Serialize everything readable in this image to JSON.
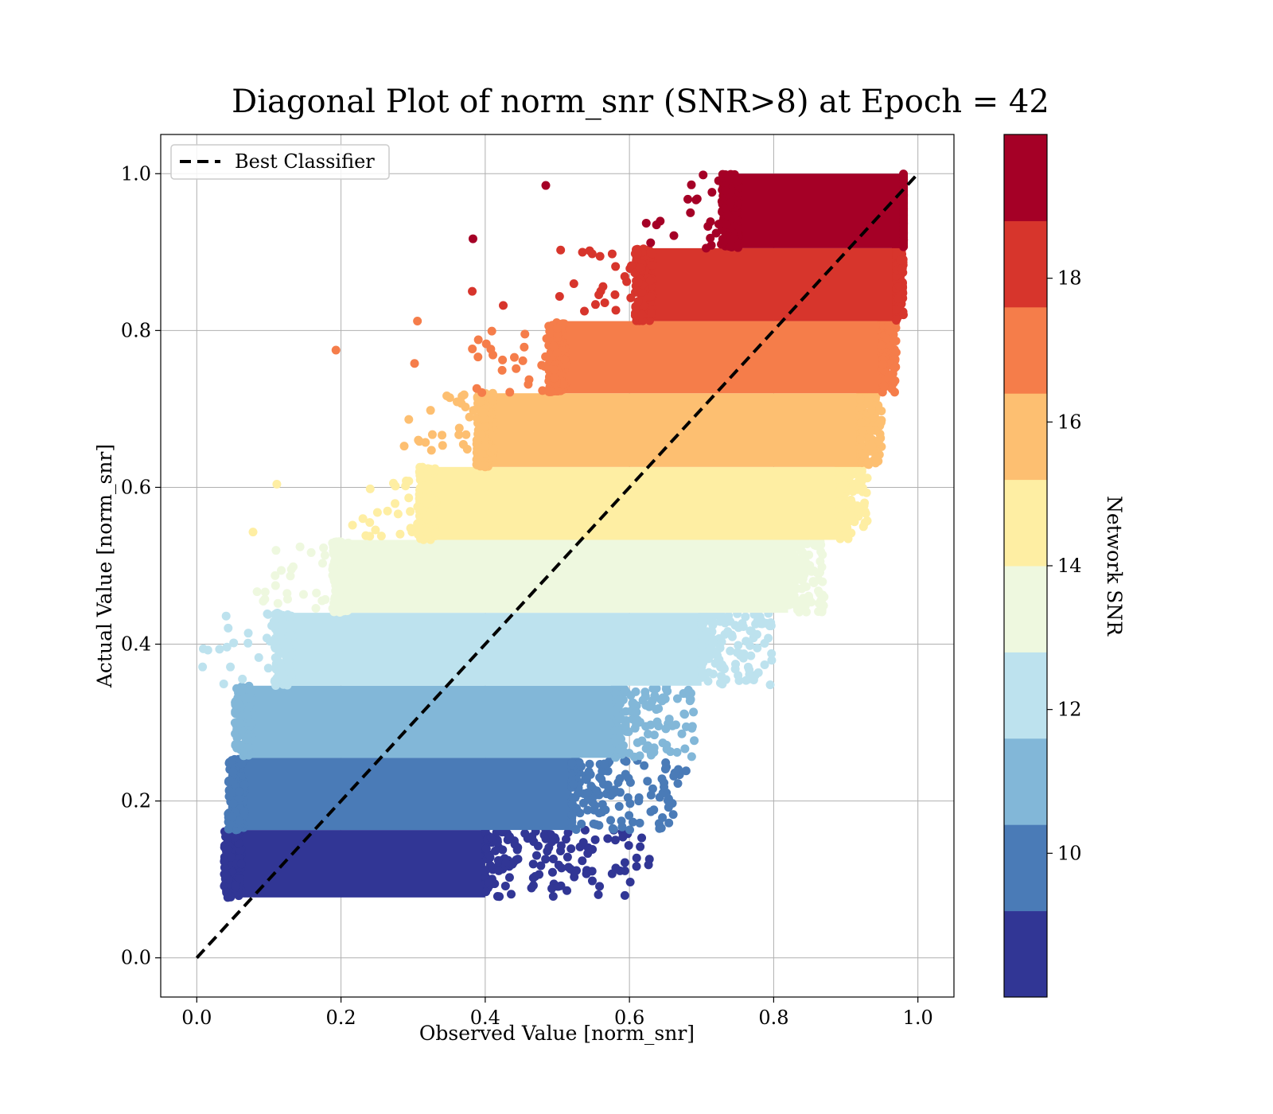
{
  "chart_data": {
    "type": "scatter",
    "title": "Diagonal Plot of norm_snr (SNR>8) at Epoch = 42",
    "xlabel": "Observed Value [norm_snr]",
    "ylabel": "Actual Value [norm_snr]",
    "xlim": [
      -0.05,
      1.05
    ],
    "ylim": [
      -0.05,
      1.05
    ],
    "xticks": [
      "0.0",
      "0.2",
      "0.4",
      "0.6",
      "0.8",
      "1.0"
    ],
    "yticks": [
      "0.0",
      "0.2",
      "0.4",
      "0.6",
      "0.8",
      "1.0"
    ],
    "grid": true,
    "legend": {
      "position": "upper-left",
      "entries": [
        "Best Classifier"
      ]
    },
    "reference_line": {
      "name": "Best Classifier",
      "x": [
        0.0,
        1.0
      ],
      "y": [
        0.0,
        1.0
      ],
      "style": "dashed",
      "color": "#000000"
    },
    "colorbar": {
      "label": "Network SNR",
      "range": [
        8,
        20
      ],
      "ticks": [
        "10",
        "12",
        "14",
        "16",
        "18"
      ],
      "bands": [
        {
          "min": 8,
          "max": 9.2,
          "color": "#313695"
        },
        {
          "min": 9.2,
          "max": 10.4,
          "color": "#4a7bb7"
        },
        {
          "min": 10.4,
          "max": 11.6,
          "color": "#82b7d8"
        },
        {
          "min": 11.6,
          "max": 12.8,
          "color": "#bde2ee"
        },
        {
          "min": 12.8,
          "max": 14.0,
          "color": "#eef8df"
        },
        {
          "min": 14.0,
          "max": 15.2,
          "color": "#feeea3"
        },
        {
          "min": 15.2,
          "max": 16.4,
          "color": "#fdbf71"
        },
        {
          "min": 16.4,
          "max": 17.6,
          "color": "#f57d4a"
        },
        {
          "min": 17.6,
          "max": 18.8,
          "color": "#d7352c"
        },
        {
          "min": 18.8,
          "max": 20.0,
          "color": "#a50026"
        }
      ]
    },
    "point_bands": [
      {
        "snr_band": "8.0-9.2",
        "y_range": [
          0.077,
          0.163
        ],
        "x_core": [
          0.05,
          0.4
        ],
        "x_sparse_max": 0.63
      },
      {
        "snr_band": "9.2-10.4",
        "y_range": [
          0.163,
          0.255
        ],
        "x_core": [
          0.055,
          0.52
        ],
        "x_sparse_max": 0.68
      },
      {
        "snr_band": "10.4-11.6",
        "y_range": [
          0.255,
          0.347
        ],
        "x_core": [
          0.065,
          0.58
        ],
        "x_sparse_max": 0.69
      },
      {
        "snr_band": "11.6-12.8",
        "y_range": [
          0.347,
          0.44
        ],
        "x_core": [
          0.12,
          0.7
        ],
        "x_sparse_max": 0.8
      },
      {
        "snr_band": "12.8-14.0",
        "y_range": [
          0.44,
          0.533
        ],
        "x_core": [
          0.2,
          0.82
        ],
        "x_sparse_max": 0.87
      },
      {
        "snr_band": "14.0-15.2",
        "y_range": [
          0.533,
          0.626
        ],
        "x_core": [
          0.32,
          0.89
        ],
        "x_sparse_max": 0.93
      },
      {
        "snr_band": "15.2-16.4",
        "y_range": [
          0.626,
          0.72
        ],
        "x_core": [
          0.4,
          0.92
        ],
        "x_sparse_max": 0.95
      },
      {
        "snr_band": "16.4-17.6",
        "y_range": [
          0.72,
          0.812
        ],
        "x_core": [
          0.5,
          0.95
        ],
        "x_sparse_max": 0.97
      },
      {
        "snr_band": "17.6-18.8",
        "y_range": [
          0.812,
          0.905
        ],
        "x_core": [
          0.62,
          0.97
        ],
        "x_sparse_max": 0.98
      },
      {
        "snr_band": "18.8-20.0",
        "y_range": [
          0.905,
          1.0
        ],
        "x_core": [
          0.74,
          0.98
        ],
        "x_sparse_max": 0.98
      }
    ],
    "outliers": [
      {
        "x": 0.484,
        "y": 0.985
      },
      {
        "x": 0.383,
        "y": 0.917
      },
      {
        "x": 0.382,
        "y": 0.85
      },
      {
        "x": 0.425,
        "y": 0.832
      },
      {
        "x": 0.306,
        "y": 0.812
      },
      {
        "x": 0.193,
        "y": 0.775
      },
      {
        "x": 0.302,
        "y": 0.758
      },
      {
        "x": 0.078,
        "y": 0.543
      },
      {
        "x": 0.111,
        "y": 0.604
      },
      {
        "x": 0.89,
        "y": 0.611
      },
      {
        "x": 0.797,
        "y": 0.388
      },
      {
        "x": 0.617,
        "y": 0.153
      },
      {
        "x": 0.501,
        "y": 0.091
      },
      {
        "x": 0.043,
        "y": 0.077
      }
    ]
  }
}
